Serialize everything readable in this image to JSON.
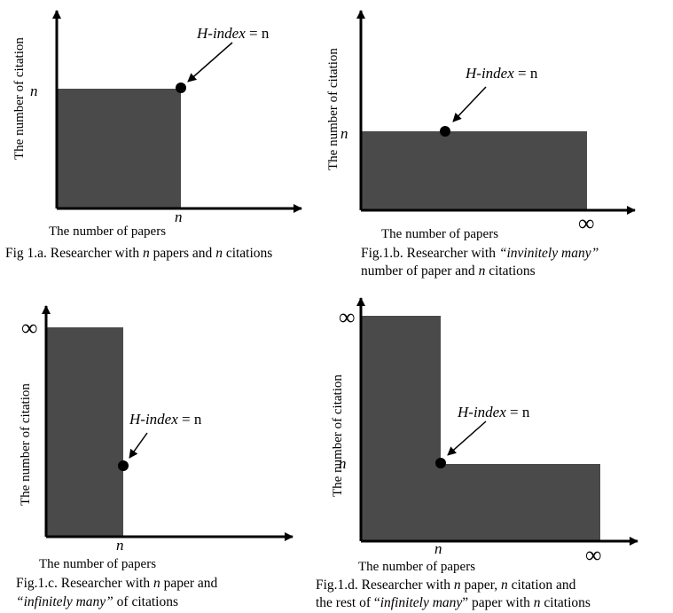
{
  "colors": {
    "fill": "#4a4a4a",
    "ink": "#000000",
    "background": "#ffffff"
  },
  "axis": {
    "x_label": "The number of papers",
    "y_label": "The number of citation"
  },
  "symbols": {
    "n": "n",
    "infinity": "∞"
  },
  "h_label": {
    "italic": "H-index",
    "rest": " = n"
  },
  "figures": {
    "a": {
      "caption_line1": {
        "p1": "Fig 1.a. Researcher with ",
        "p2": "n",
        "p3": " papers and ",
        "p4": "n",
        "p5": " citations"
      }
    },
    "b": {
      "caption_line1": {
        "p1": "Fig.1.b. Researcher with ",
        "p2": "“invinitely many”"
      },
      "caption_line2": {
        "p1": "number of paper and ",
        "p2": "n",
        "p3": " citations"
      }
    },
    "c": {
      "caption_line1": {
        "p1": "Fig.1.c. Researcher with ",
        "p2": "n",
        "p3": " paper and"
      },
      "caption_line2": {
        "p1": "“infinitely many”",
        "p2": " of citations"
      }
    },
    "d": {
      "caption_line1": {
        "p1": "Fig.1.d. Researcher with ",
        "p2": "n",
        "p3": " paper, ",
        "p4": "n",
        "p5": " citation and"
      },
      "caption_line2": {
        "p1": "the rest of “",
        "p2": "infinitely many",
        "p3": "” paper with ",
        "p4": "n",
        "p5": " citations"
      }
    }
  }
}
